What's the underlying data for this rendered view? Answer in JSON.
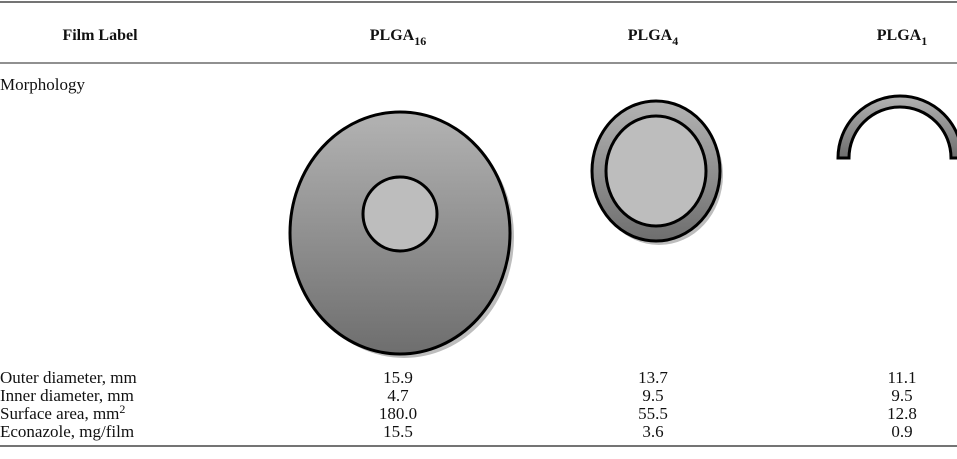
{
  "table": {
    "header": [
      {
        "text": "Film Label"
      },
      {
        "base": "PLGA",
        "sub": "16"
      },
      {
        "base": "PLGA",
        "sub": "4"
      },
      {
        "base": "PLGA",
        "sub": "1"
      }
    ],
    "morphology_label": "Morphology",
    "rows": [
      {
        "label": "Outer diameter, mm",
        "cells": [
          "15.9",
          "13.7",
          "11.1"
        ]
      },
      {
        "label": "Inner diameter, mm",
        "cells": [
          "4.7",
          "9.5",
          "9.5"
        ]
      },
      {
        "label": "Surface area, mm",
        "label_sup": "2",
        "cells": [
          "180.0",
          "55.5",
          "12.8"
        ]
      },
      {
        "label": "Econazole, mg/film",
        "cells": [
          "15.5",
          "3.6",
          "0.9"
        ]
      }
    ]
  }
}
